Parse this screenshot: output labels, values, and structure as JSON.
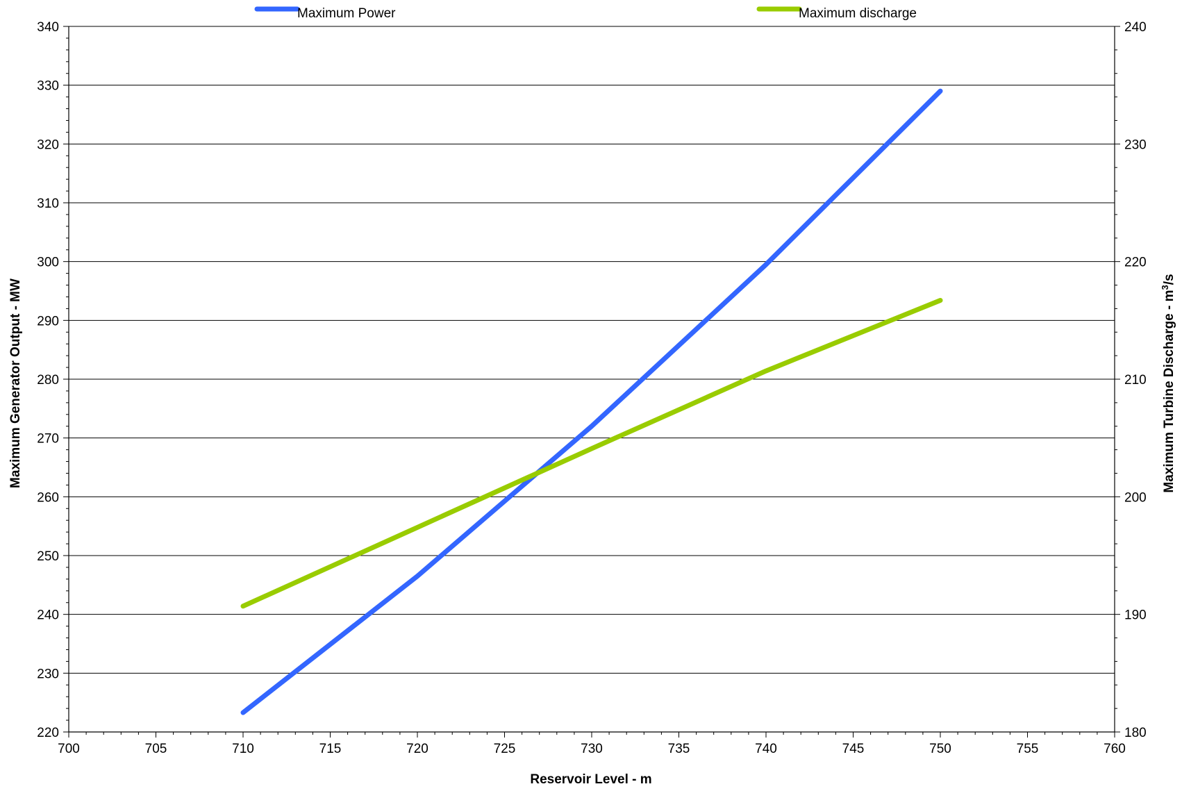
{
  "chart_data": {
    "type": "line",
    "xlabel": "Reservoir Level - m",
    "ylabel_left": "Maximum Generator Output - MW",
    "ylabel_right_prefix": "Maximum Turbine Discharge - m",
    "ylabel_right_superscript": "3",
    "ylabel_right_suffix": "/s",
    "xlim": [
      700,
      760
    ],
    "ylim_left": [
      220,
      340
    ],
    "ylim_right": [
      180,
      240
    ],
    "xticks": [
      "700",
      "705",
      "710",
      "715",
      "720",
      "725",
      "730",
      "735",
      "740",
      "745",
      "750",
      "755",
      "760"
    ],
    "yticks_left": [
      "220",
      "230",
      "240",
      "250",
      "260",
      "270",
      "280",
      "290",
      "300",
      "310",
      "320",
      "330",
      "340"
    ],
    "yticks_right": [
      "180",
      "190",
      "200",
      "210",
      "220",
      "230",
      "240"
    ],
    "grid": "horizontal major gridlines",
    "legend_position": "top",
    "series": [
      {
        "name": "Maximum Power",
        "axis": "left",
        "color": "#3366ff",
        "x": [
          710,
          720,
          730,
          740,
          750
        ],
        "y": [
          223.3,
          246.5,
          272.0,
          299.5,
          329.0
        ]
      },
      {
        "name": "Maximum discharge",
        "axis": "right",
        "color": "#99cc00",
        "x": [
          710,
          720,
          730,
          740,
          750
        ],
        "y": [
          190.7,
          197.4,
          204.1,
          210.7,
          216.7
        ]
      }
    ]
  }
}
